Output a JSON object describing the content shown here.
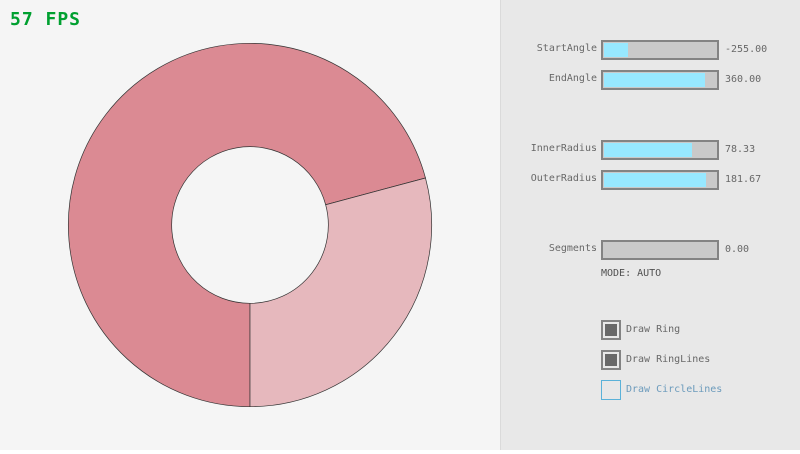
{
  "fps": "57 FPS",
  "colors": {
    "ring_main": "#db8a93",
    "ring_light": "#e6b8bd",
    "slider_fill": "#97e8ff",
    "fps": "#00a030"
  },
  "ring": {
    "start_angle": -255,
    "end_angle": 360,
    "inner_radius": 78.33,
    "outer_radius": 181.67
  },
  "sliders": [
    {
      "label": "StartAngle",
      "value": "-255.00",
      "fill": 0.217
    },
    {
      "label": "EndAngle",
      "value": "360.00",
      "fill": 0.9
    },
    {
      "label": "InnerRadius",
      "value": "78.33",
      "fill": 0.783
    },
    {
      "label": "OuterRadius",
      "value": "181.67",
      "fill": 0.908
    },
    {
      "label": "Segments",
      "value": "0.00",
      "fill": 0
    }
  ],
  "mode": "MODE: AUTO",
  "checkboxes": [
    {
      "label": "Draw Ring",
      "checked": true
    },
    {
      "label": "Draw RingLines",
      "checked": true
    },
    {
      "label": "Draw CircleLines",
      "checked": false
    }
  ]
}
